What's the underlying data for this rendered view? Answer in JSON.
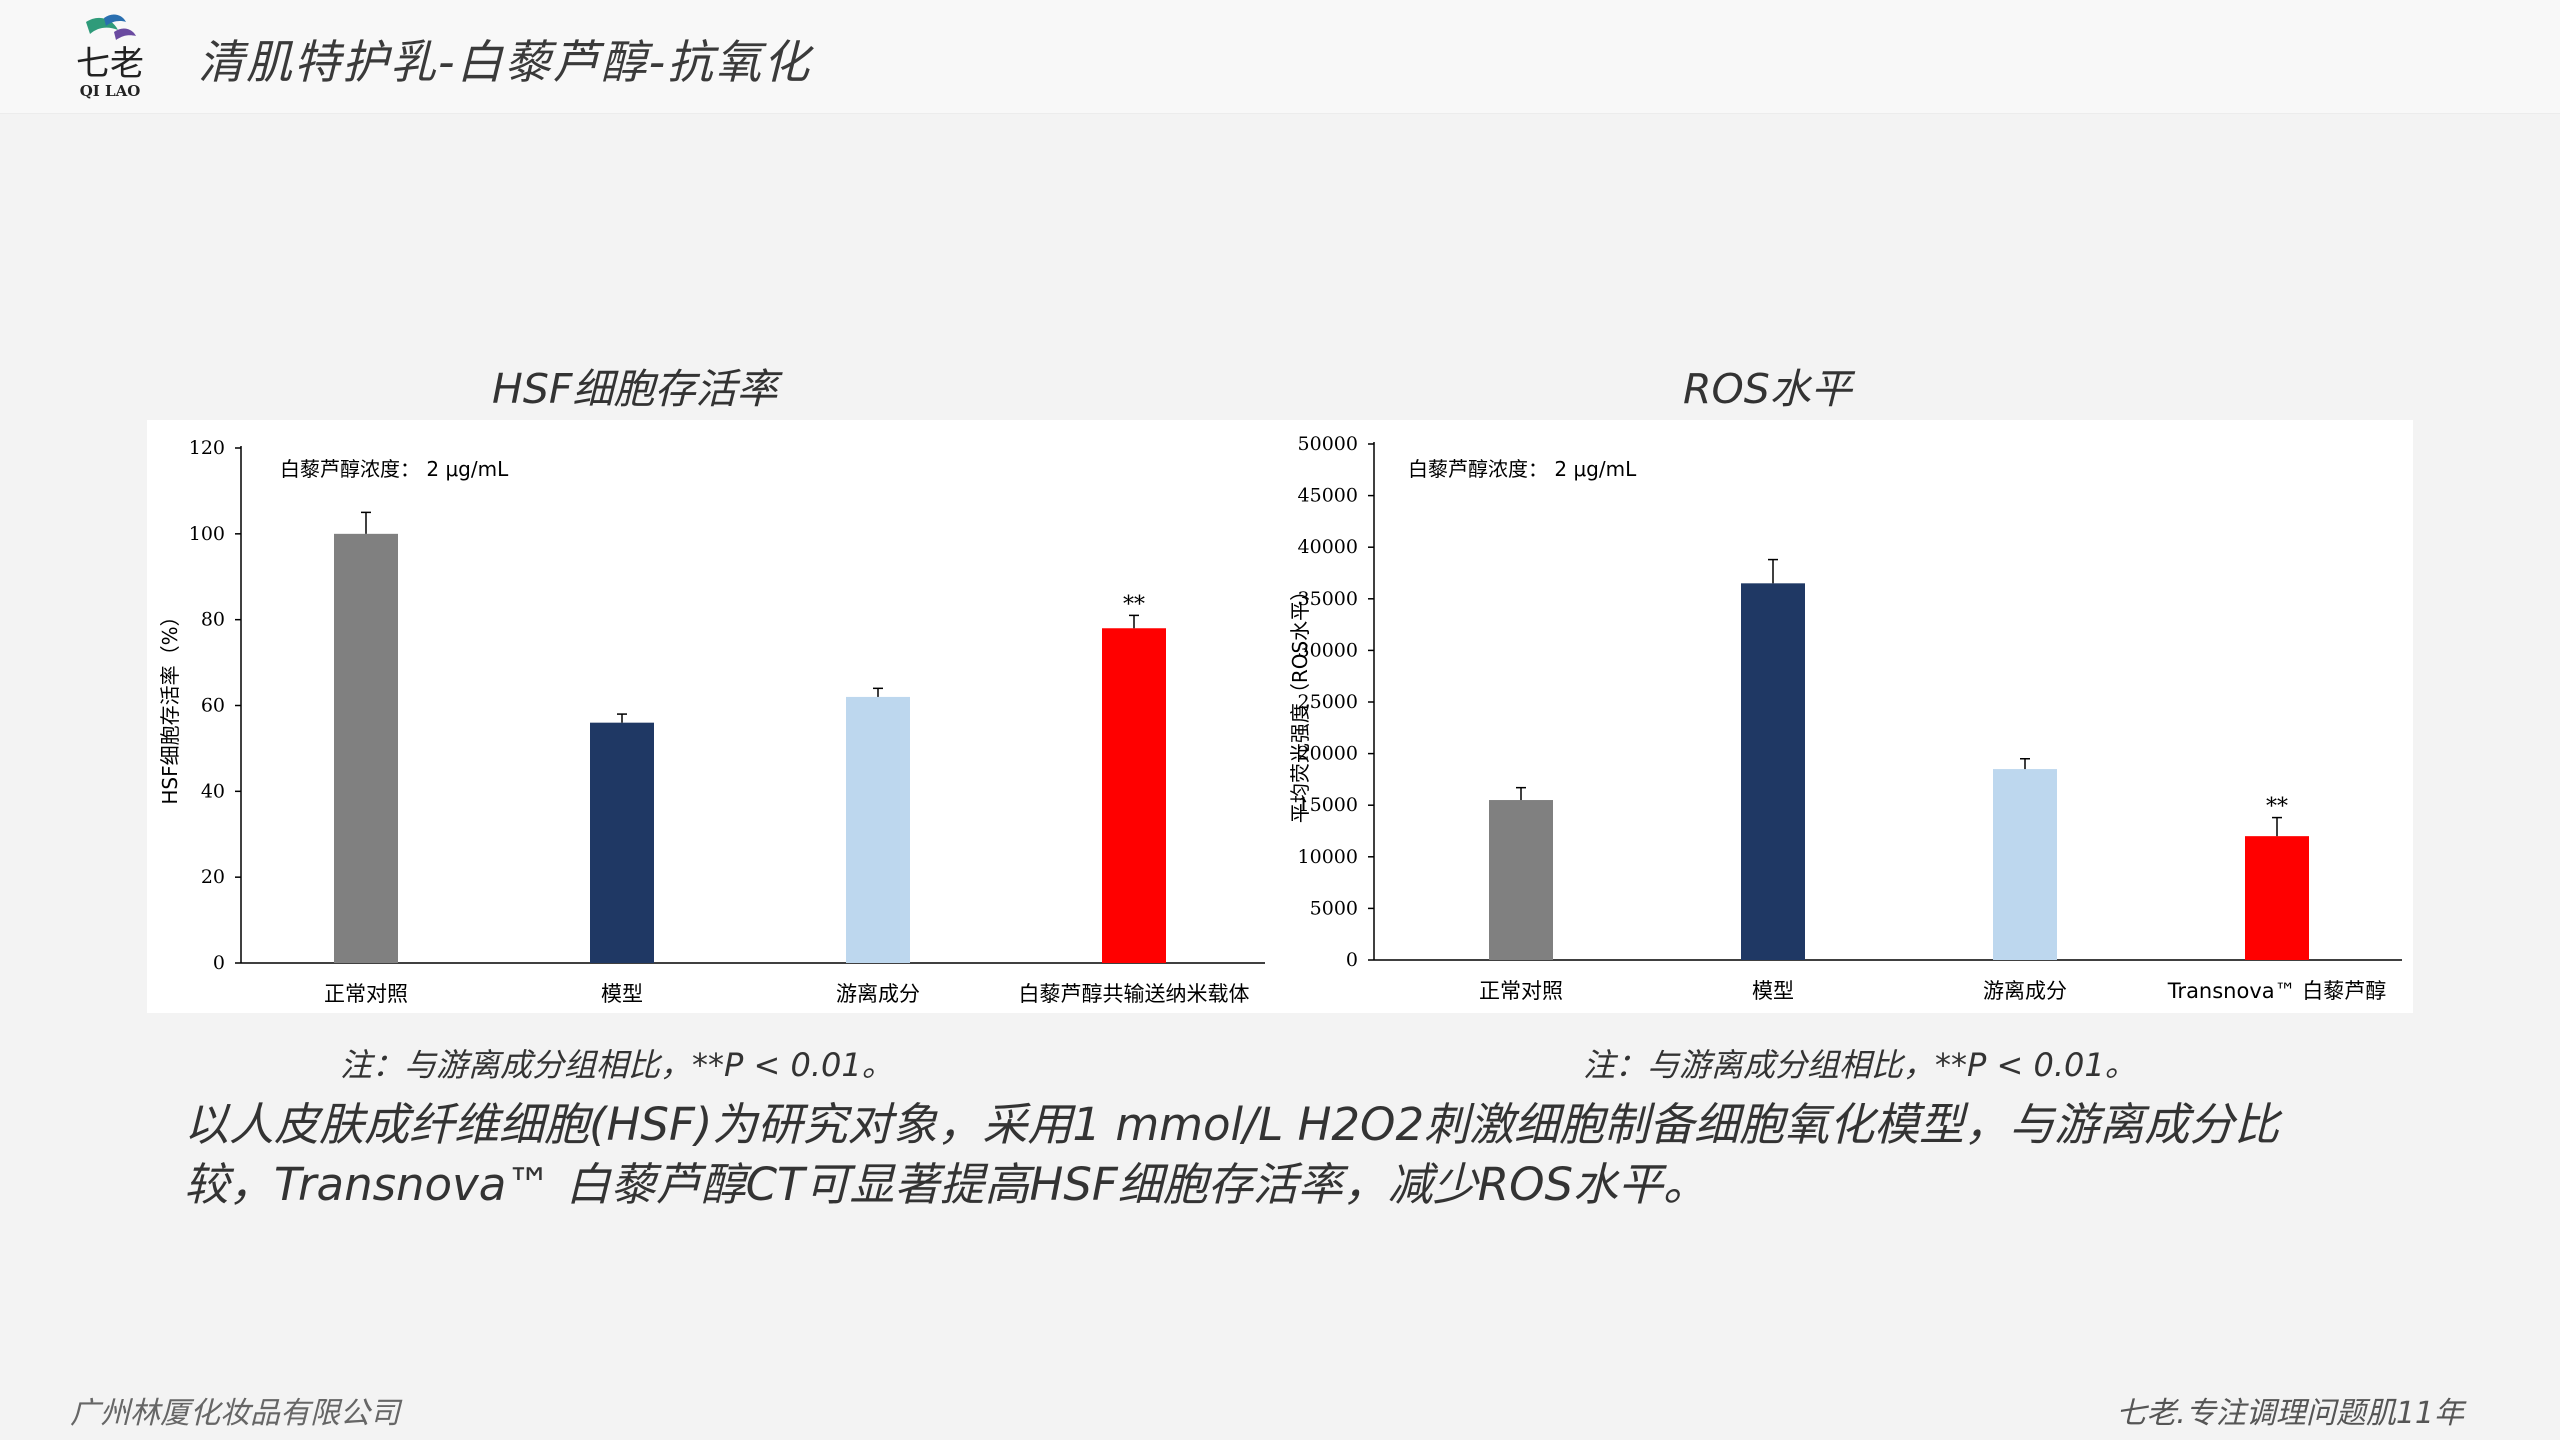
{
  "header": {
    "title": "清肌特护乳-白藜芦醇-抗氧化"
  },
  "logo": {
    "text": "七老",
    "subtext": "QI LAO"
  },
  "chart_data": [
    {
      "type": "bar",
      "title": "HSF细胞存活率",
      "ylabel": "HSF细胞存活率（%）",
      "xlabel": "",
      "annotation": "白藜芦醇浓度： 2 μg/mL",
      "categories": [
        "正常对照",
        "模型",
        "游离成分",
        "白藜芦醇共输送纳米载体"
      ],
      "values": [
        100,
        56,
        62,
        78
      ],
      "errors": [
        5,
        2,
        2,
        3
      ],
      "colors": [
        "#808080",
        "#1f3864",
        "#bdd7ee",
        "#ff0000"
      ],
      "significance": [
        "",
        "",
        "",
        "**"
      ],
      "ylim": [
        0,
        120
      ],
      "yticks": [
        0,
        20,
        40,
        60,
        80,
        100,
        120
      ],
      "grid": false
    },
    {
      "type": "bar",
      "title": "ROS水平",
      "ylabel": "平均荧光强度（ROS水平）",
      "xlabel": "",
      "annotation": "白藜芦醇浓度： 2 μg/mL",
      "categories": [
        "正常对照",
        "模型",
        "游离成分",
        "Transnova™ 白藜芦醇"
      ],
      "values": [
        15500,
        36500,
        18500,
        12000
      ],
      "errors": [
        1200,
        2300,
        1000,
        1800
      ],
      "colors": [
        "#808080",
        "#1f3864",
        "#bdd7ee",
        "#ff0000"
      ],
      "significance": [
        "",
        "",
        "",
        "**"
      ],
      "ylim": [
        0,
        50000
      ],
      "yticks": [
        0,
        5000,
        10000,
        15000,
        20000,
        25000,
        30000,
        35000,
        40000,
        45000,
        50000
      ],
      "grid": false
    }
  ],
  "notes": {
    "left": "注：与游离成分组相比，**P < 0.01。",
    "right": "注：与游离成分组相比，**P < 0.01。"
  },
  "summary": {
    "line1": "以人皮肤成纤维细胞(HSF)为研究对象，采用1 mmol/L H2O2刺激细胞制备细胞氧化模型，与游离成分比",
    "line2": "较，Transnova™ 白藜芦醇CT可显著提高HSF细胞存活率，减少ROS水平。"
  },
  "footer": {
    "left": "广州林厦化妆品有限公司",
    "right": "七老.专注调理问题肌11年"
  }
}
